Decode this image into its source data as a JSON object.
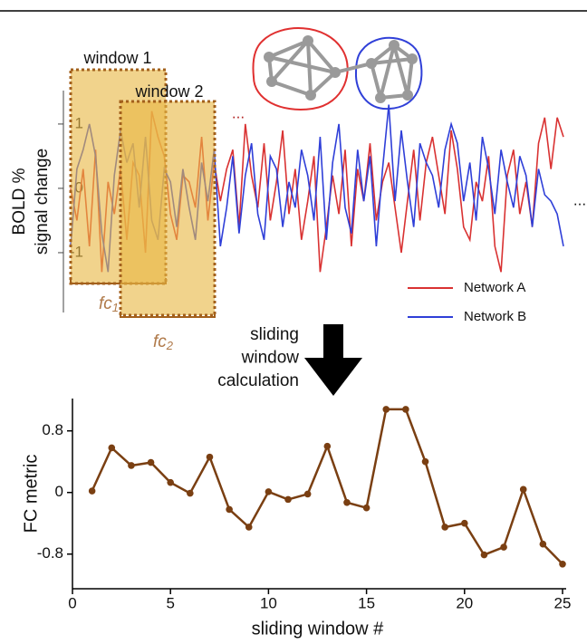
{
  "chart_data": [
    {
      "type": "line",
      "ylabel": [
        "BOLD %",
        "signal change"
      ],
      "ylim": [
        -1.93,
        1.52
      ],
      "yticks": [
        -1,
        0,
        1
      ],
      "series": [
        {
          "name": "Network A",
          "color": "#d93232",
          "values": [
            0,
            -0.5,
            0.3,
            -0.9,
            0.6,
            -1.3,
            0.1,
            -0.4,
            0.3,
            -0.8,
            0.4,
            0.2,
            -1.0,
            1.2,
            0.8,
            0.5,
            -0.4,
            -0.8,
            0.2,
            0.1,
            -0.3,
            0.8,
            -0.5,
            0.4,
            -0.2,
            0.3,
            0.6,
            -0.6,
            1.0,
            0.2,
            -0.3,
            0.7,
            -0.5,
            0.1,
            0.9,
            -0.4,
            0.3,
            -0.8,
            -0.2,
            0.5,
            -1.3,
            -0.6,
            0.2,
            -0.4,
            0.6,
            -0.9,
            0.3,
            -0.2,
            0.7,
            -0.5,
            0.1,
            0.4,
            -0.3,
            -1.0,
            -0.2,
            0.6,
            -0.5,
            0.4,
            0.8,
            0.2,
            -0.4,
            0.9,
            0.3,
            -0.6,
            -0.8,
            0.1,
            -0.2,
            0.5,
            -0.9,
            -1.3,
            0.2,
            0.6,
            -0.4,
            0.1,
            -0.6,
            0.7,
            1.1,
            0.3,
            1.1,
            0.8
          ]
        },
        {
          "name": "Network B",
          "color": "#2f3fd8",
          "values": [
            -0.9,
            0.3,
            0.6,
            1.0,
            0.5,
            -0.7,
            -1.3,
            0.2,
            0.9,
            0.4,
            0.7,
            -0.3,
            0.8,
            -0.5,
            -0.8,
            0.3,
            0.1,
            -0.6,
            0.3,
            -0.3,
            -0.8,
            0.4,
            -0.2,
            0.6,
            -0.9,
            -0.3,
            0.5,
            -0.7,
            0.2,
            0.7,
            -0.4,
            -0.8,
            0.5,
            0.3,
            -0.6,
            0.1,
            -0.3,
            0.6,
            0.2,
            -0.5,
            0.8,
            -0.8,
            0.4,
            1.0,
            -0.3,
            -0.7,
            0.6,
            -0.2,
            0.5,
            -0.9,
            0.3,
            1.3,
            -0.2,
            0.9,
            0.1,
            -0.6,
            0.7,
            0.4,
            0.2,
            -0.3,
            0.6,
            1.0,
            0.7,
            -0.2,
            0.4,
            -0.5,
            0.8,
            0.3,
            -0.4,
            0.6,
            0.1,
            -0.3,
            0.5,
            0.2,
            -0.6,
            0.3,
            -0.1,
            -0.2,
            -0.4,
            -0.9
          ]
        }
      ],
      "windows": [
        "window 1",
        "window 2"
      ],
      "window_metrics": [
        {
          "text": "fc",
          "sub": "1"
        },
        {
          "text": "fc",
          "sub": "2"
        }
      ],
      "ellipses": [
        "...",
        "..."
      ]
    },
    {
      "type": "line",
      "xlabel": "sliding window #",
      "ylabel": "FC metric",
      "color": "#7a3f12",
      "x": [
        1,
        2,
        3,
        4,
        5,
        6,
        7,
        8,
        9,
        10,
        11,
        12,
        13,
        14,
        15,
        16,
        17,
        18,
        19,
        20,
        21,
        22,
        23,
        24,
        25
      ],
      "values": [
        0.02,
        0.58,
        0.35,
        0.39,
        0.13,
        -0.01,
        0.46,
        -0.22,
        -0.45,
        0.01,
        -0.09,
        -0.02,
        0.6,
        -0.13,
        -0.2,
        1.08,
        1.08,
        0.4,
        -0.45,
        -0.4,
        -0.81,
        -0.71,
        0.04,
        -0.67,
        -0.93
      ],
      "xlim": [
        0,
        25
      ],
      "xticks": [
        0,
        5,
        10,
        15,
        20,
        25
      ],
      "ylim": [
        -1.25,
        1.22
      ],
      "yticks": [
        -0.8,
        0,
        0.8
      ]
    }
  ],
  "arrow_label": [
    "sliding",
    "window",
    "calculation"
  ]
}
